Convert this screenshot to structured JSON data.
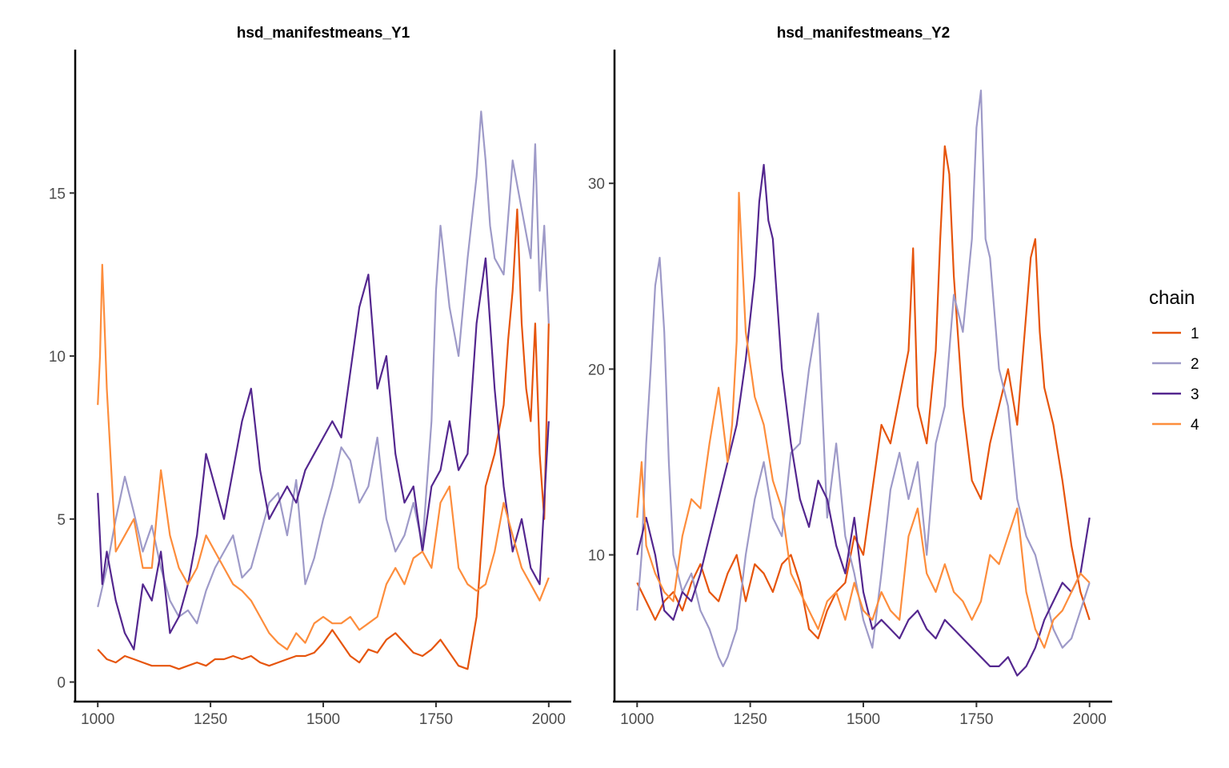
{
  "legend": {
    "title": "chain",
    "placement": "right",
    "entries": [
      {
        "label": "1",
        "color": "#e6550d"
      },
      {
        "label": "2",
        "color": "#9e9ac8"
      },
      {
        "label": "3",
        "color": "#54278f"
      },
      {
        "label": "4",
        "color": "#fd8d3c"
      }
    ]
  },
  "chart_data": [
    {
      "type": "line",
      "title": "hsd_manifestmeans_Y1",
      "xlabel": "",
      "ylabel": "",
      "xlim": [
        950,
        2050
      ],
      "ylim": [
        -0.6,
        19.4
      ],
      "xticks": [
        1000,
        1250,
        1500,
        1750,
        2000
      ],
      "yticks": [
        0,
        5,
        10,
        15
      ],
      "grid": false,
      "series": [
        {
          "name": "1",
          "color": "#e6550d",
          "x": [
            1000,
            1020,
            1040,
            1060,
            1080,
            1100,
            1120,
            1140,
            1160,
            1180,
            1200,
            1220,
            1240,
            1260,
            1280,
            1300,
            1320,
            1340,
            1360,
            1380,
            1400,
            1420,
            1440,
            1460,
            1480,
            1500,
            1520,
            1540,
            1560,
            1580,
            1600,
            1620,
            1640,
            1660,
            1680,
            1700,
            1720,
            1740,
            1760,
            1780,
            1800,
            1820,
            1840,
            1860,
            1880,
            1900,
            1910,
            1920,
            1930,
            1940,
            1950,
            1960,
            1970,
            1980,
            1990,
            2000
          ],
          "y": [
            1.0,
            0.7,
            0.6,
            0.8,
            0.7,
            0.6,
            0.5,
            0.5,
            0.5,
            0.4,
            0.5,
            0.6,
            0.5,
            0.7,
            0.7,
            0.8,
            0.7,
            0.8,
            0.6,
            0.5,
            0.6,
            0.7,
            0.8,
            0.8,
            0.9,
            1.2,
            1.6,
            1.2,
            0.8,
            0.6,
            1.0,
            0.9,
            1.3,
            1.5,
            1.2,
            0.9,
            0.8,
            1.0,
            1.3,
            0.9,
            0.5,
            0.4,
            2.0,
            6.0,
            7.0,
            8.5,
            10.5,
            12.0,
            14.5,
            11.0,
            9.0,
            8.0,
            11.0,
            7.0,
            5.0,
            11.0
          ]
        },
        {
          "name": "2",
          "color": "#9e9ac8",
          "x": [
            1000,
            1020,
            1040,
            1060,
            1080,
            1100,
            1120,
            1140,
            1160,
            1180,
            1200,
            1220,
            1240,
            1260,
            1280,
            1300,
            1320,
            1340,
            1360,
            1380,
            1400,
            1420,
            1440,
            1460,
            1480,
            1500,
            1520,
            1540,
            1560,
            1580,
            1600,
            1620,
            1640,
            1660,
            1680,
            1700,
            1720,
            1740,
            1750,
            1760,
            1780,
            1800,
            1820,
            1840,
            1850,
            1860,
            1870,
            1880,
            1900,
            1920,
            1940,
            1960,
            1970,
            1980,
            1990,
            2000
          ],
          "y": [
            2.3,
            3.5,
            5.0,
            6.3,
            5.2,
            4.0,
            4.8,
            3.5,
            2.5,
            2.0,
            2.2,
            1.8,
            2.8,
            3.5,
            4.0,
            4.5,
            3.2,
            3.5,
            4.5,
            5.5,
            5.8,
            4.5,
            6.2,
            3.0,
            3.8,
            5.0,
            6.0,
            7.2,
            6.8,
            5.5,
            6.0,
            7.5,
            5.0,
            4.0,
            4.5,
            5.5,
            4.2,
            8.0,
            12.0,
            14.0,
            11.5,
            10.0,
            13.0,
            15.5,
            17.5,
            16.0,
            14.0,
            13.0,
            12.5,
            16.0,
            14.5,
            13.0,
            16.5,
            12.0,
            14.0,
            11.0
          ]
        },
        {
          "name": "3",
          "color": "#54278f",
          "x": [
            1000,
            1010,
            1020,
            1040,
            1060,
            1080,
            1100,
            1120,
            1140,
            1160,
            1180,
            1200,
            1220,
            1240,
            1260,
            1280,
            1300,
            1320,
            1340,
            1360,
            1380,
            1400,
            1420,
            1440,
            1460,
            1480,
            1500,
            1520,
            1540,
            1560,
            1580,
            1600,
            1620,
            1640,
            1660,
            1680,
            1700,
            1720,
            1740,
            1760,
            1780,
            1800,
            1820,
            1840,
            1860,
            1880,
            1900,
            1920,
            1940,
            1960,
            1980,
            2000
          ],
          "y": [
            5.8,
            3.0,
            4.0,
            2.5,
            1.5,
            1.0,
            3.0,
            2.5,
            4.0,
            1.5,
            2.0,
            3.0,
            4.5,
            7.0,
            6.0,
            5.0,
            6.5,
            8.0,
            9.0,
            6.5,
            5.0,
            5.5,
            6.0,
            5.5,
            6.5,
            7.0,
            7.5,
            8.0,
            7.5,
            9.5,
            11.5,
            12.5,
            9.0,
            10.0,
            7.0,
            5.5,
            6.0,
            4.0,
            6.0,
            6.5,
            8.0,
            6.5,
            7.0,
            11.0,
            13.0,
            9.0,
            6.0,
            4.0,
            5.0,
            3.5,
            3.0,
            8.0
          ]
        },
        {
          "name": "4",
          "color": "#fd8d3c",
          "x": [
            1000,
            1005,
            1010,
            1015,
            1020,
            1030,
            1040,
            1060,
            1080,
            1100,
            1120,
            1140,
            1160,
            1180,
            1200,
            1220,
            1240,
            1260,
            1280,
            1300,
            1320,
            1340,
            1360,
            1380,
            1400,
            1420,
            1440,
            1460,
            1480,
            1500,
            1520,
            1540,
            1560,
            1580,
            1600,
            1620,
            1640,
            1660,
            1680,
            1700,
            1720,
            1740,
            1760,
            1780,
            1800,
            1820,
            1840,
            1860,
            1880,
            1900,
            1920,
            1940,
            1960,
            1980,
            2000
          ],
          "y": [
            8.5,
            10.0,
            12.8,
            11.0,
            9.0,
            6.5,
            4.0,
            4.5,
            5.0,
            3.5,
            3.5,
            6.5,
            4.5,
            3.5,
            3.0,
            3.5,
            4.5,
            4.0,
            3.5,
            3.0,
            2.8,
            2.5,
            2.0,
            1.5,
            1.2,
            1.0,
            1.5,
            1.2,
            1.8,
            2.0,
            1.8,
            1.8,
            2.0,
            1.6,
            1.8,
            2.0,
            3.0,
            3.5,
            3.0,
            3.8,
            4.0,
            3.5,
            5.5,
            6.0,
            3.5,
            3.0,
            2.8,
            3.0,
            4.0,
            5.5,
            4.5,
            3.5,
            3.0,
            2.5,
            3.2
          ]
        }
      ]
    },
    {
      "type": "line",
      "title": "hsd_manifestmeans_Y2",
      "xlabel": "",
      "ylabel": "",
      "xlim": [
        950,
        2050
      ],
      "ylim": [
        2.1,
        37.2
      ],
      "xticks": [
        1000,
        1250,
        1500,
        1750,
        2000
      ],
      "yticks": [
        10,
        20,
        30
      ],
      "grid": false,
      "series": [
        {
          "name": "1",
          "color": "#e6550d",
          "x": [
            1000,
            1020,
            1040,
            1060,
            1080,
            1100,
            1120,
            1140,
            1160,
            1180,
            1200,
            1220,
            1240,
            1260,
            1280,
            1300,
            1320,
            1340,
            1360,
            1380,
            1400,
            1420,
            1440,
            1460,
            1480,
            1500,
            1520,
            1540,
            1560,
            1580,
            1600,
            1610,
            1620,
            1640,
            1660,
            1670,
            1680,
            1690,
            1700,
            1720,
            1740,
            1760,
            1780,
            1800,
            1820,
            1840,
            1860,
            1870,
            1880,
            1890,
            1900,
            1920,
            1940,
            1960,
            1980,
            2000
          ],
          "y": [
            8.5,
            7.5,
            6.5,
            7.5,
            8.0,
            7.0,
            8.5,
            9.5,
            8.0,
            7.5,
            9.0,
            10.0,
            7.5,
            9.5,
            9.0,
            8.0,
            9.5,
            10.0,
            8.5,
            6.0,
            5.5,
            7.0,
            8.0,
            8.5,
            11.0,
            10.0,
            13.5,
            17.0,
            16.0,
            18.5,
            21.0,
            26.5,
            18.0,
            16.0,
            21.0,
            27.0,
            32.0,
            30.5,
            25.0,
            18.0,
            14.0,
            13.0,
            16.0,
            18.0,
            20.0,
            17.0,
            23.0,
            26.0,
            27.0,
            22.0,
            19.0,
            17.0,
            14.0,
            10.5,
            8.0,
            6.5
          ]
        },
        {
          "name": "2",
          "color": "#9e9ac8",
          "x": [
            1000,
            1010,
            1020,
            1030,
            1040,
            1050,
            1060,
            1070,
            1080,
            1100,
            1120,
            1140,
            1160,
            1180,
            1190,
            1200,
            1220,
            1240,
            1260,
            1280,
            1300,
            1320,
            1340,
            1360,
            1380,
            1400,
            1420,
            1440,
            1460,
            1480,
            1500,
            1520,
            1540,
            1560,
            1580,
            1600,
            1620,
            1640,
            1660,
            1680,
            1700,
            1720,
            1740,
            1750,
            1760,
            1770,
            1780,
            1800,
            1820,
            1840,
            1860,
            1880,
            1900,
            1920,
            1940,
            1960,
            1980,
            2000
          ],
          "y": [
            7.0,
            10.0,
            16.0,
            20.0,
            24.5,
            26.0,
            22.0,
            15.0,
            10.0,
            8.0,
            9.0,
            7.0,
            6.0,
            4.5,
            4.0,
            4.5,
            6.0,
            10.0,
            13.0,
            15.0,
            12.0,
            11.0,
            15.5,
            16.0,
            20.0,
            23.0,
            12.0,
            16.0,
            11.0,
            9.0,
            6.5,
            5.0,
            9.0,
            13.5,
            15.5,
            13.0,
            15.0,
            10.0,
            16.0,
            18.0,
            24.0,
            22.0,
            27.0,
            33.0,
            35.0,
            27.0,
            26.0,
            20.0,
            18.0,
            13.0,
            11.0,
            10.0,
            8.0,
            6.0,
            5.0,
            5.5,
            7.0,
            8.5
          ]
        },
        {
          "name": "3",
          "color": "#54278f",
          "x": [
            1000,
            1020,
            1040,
            1060,
            1080,
            1100,
            1120,
            1140,
            1160,
            1180,
            1200,
            1220,
            1240,
            1260,
            1270,
            1280,
            1290,
            1300,
            1320,
            1340,
            1360,
            1380,
            1400,
            1420,
            1440,
            1460,
            1480,
            1500,
            1520,
            1540,
            1560,
            1580,
            1600,
            1620,
            1640,
            1660,
            1680,
            1700,
            1720,
            1740,
            1760,
            1780,
            1800,
            1820,
            1840,
            1860,
            1880,
            1900,
            1920,
            1940,
            1960,
            1980,
            2000
          ],
          "y": [
            10.0,
            12.0,
            10.0,
            7.0,
            6.5,
            8.0,
            7.5,
            9.0,
            11.0,
            13.0,
            15.0,
            17.0,
            20.5,
            25.0,
            29.0,
            31.0,
            28.0,
            27.0,
            20.0,
            16.0,
            13.0,
            11.5,
            14.0,
            13.0,
            10.5,
            9.0,
            12.0,
            8.0,
            6.0,
            6.5,
            6.0,
            5.5,
            6.5,
            7.0,
            6.0,
            5.5,
            6.5,
            6.0,
            5.5,
            5.0,
            4.5,
            4.0,
            4.0,
            4.5,
            3.5,
            4.0,
            5.0,
            6.5,
            7.5,
            8.5,
            8.0,
            9.0,
            12.0
          ]
        },
        {
          "name": "4",
          "color": "#fd8d3c",
          "x": [
            1000,
            1010,
            1020,
            1040,
            1060,
            1080,
            1100,
            1120,
            1140,
            1160,
            1180,
            1200,
            1210,
            1220,
            1225,
            1240,
            1260,
            1280,
            1300,
            1320,
            1340,
            1360,
            1380,
            1400,
            1420,
            1440,
            1460,
            1480,
            1500,
            1520,
            1540,
            1560,
            1580,
            1600,
            1620,
            1640,
            1660,
            1680,
            1700,
            1720,
            1740,
            1760,
            1780,
            1800,
            1820,
            1840,
            1860,
            1880,
            1900,
            1920,
            1940,
            1960,
            1980,
            2000
          ],
          "y": [
            12.0,
            15.0,
            10.5,
            9.0,
            8.0,
            7.5,
            11.0,
            13.0,
            12.5,
            16.0,
            19.0,
            15.0,
            17.0,
            21.5,
            29.5,
            22.0,
            18.5,
            17.0,
            14.0,
            12.5,
            9.0,
            8.0,
            7.0,
            6.0,
            7.5,
            8.0,
            6.5,
            8.5,
            7.0,
            6.5,
            8.0,
            7.0,
            6.5,
            11.0,
            12.5,
            9.0,
            8.0,
            9.5,
            8.0,
            7.5,
            6.5,
            7.5,
            10.0,
            9.5,
            11.0,
            12.5,
            8.0,
            6.0,
            5.0,
            6.5,
            7.0,
            8.0,
            9.0,
            8.5
          ]
        }
      ]
    }
  ]
}
